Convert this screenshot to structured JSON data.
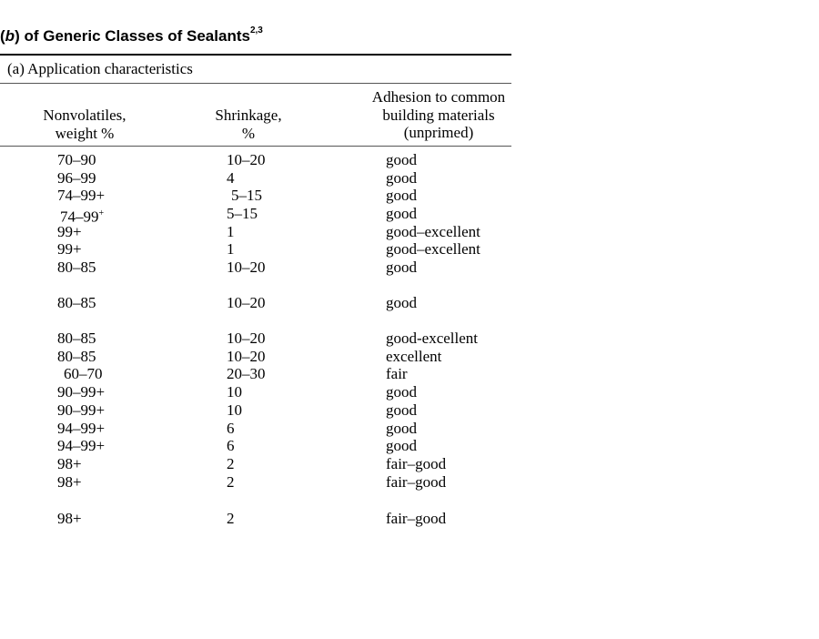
{
  "title": {
    "prefix": "(",
    "letter": "b",
    "rest": ") of Generic Classes of Sealants",
    "sup": "2,3"
  },
  "section": {
    "label": "(a) Application characteristics"
  },
  "headers": {
    "col1": [
      "Nonvolatiles,",
      "weight %"
    ],
    "col2": [
      "Shrinkage,",
      "%"
    ],
    "col3": [
      "Adhesion to common",
      "building materials",
      "(unprimed)"
    ]
  },
  "rows": [
    {
      "nonvolatiles": "70–90",
      "shrinkage": "10–20",
      "adhesion": "good"
    },
    {
      "nonvolatiles": "96–99",
      "shrinkage": "4",
      "adhesion": "good"
    },
    {
      "nonvolatiles": "74–99+",
      "shrinkage": "5–15",
      "adhesion": "good"
    },
    {
      "nonvolatiles": "74–99",
      "nonvolatiles_sup": "+",
      "shrinkage": "5–15",
      "adhesion": "good"
    },
    {
      "nonvolatiles": "99+",
      "shrinkage": "1",
      "adhesion": "good–excellent"
    },
    {
      "nonvolatiles": "99+",
      "shrinkage": "1",
      "adhesion": "good–excellent"
    },
    {
      "nonvolatiles": "80–85",
      "shrinkage": "10–20",
      "adhesion": "good"
    },
    {
      "nonvolatiles": "80–85",
      "shrinkage": "10–20",
      "adhesion": "good"
    },
    {
      "nonvolatiles": "80–85",
      "shrinkage": "10–20",
      "adhesion": "good-excellent"
    },
    {
      "nonvolatiles": "80–85",
      "shrinkage": "10–20",
      "adhesion": "excellent"
    },
    {
      "nonvolatiles": "60–70",
      "shrinkage": "20–30",
      "adhesion": "fair"
    },
    {
      "nonvolatiles": "90–99+",
      "shrinkage": "10",
      "adhesion": "good"
    },
    {
      "nonvolatiles": "90–99+",
      "shrinkage": "10",
      "adhesion": "good"
    },
    {
      "nonvolatiles": "94–99+",
      "shrinkage": "6",
      "adhesion": "good"
    },
    {
      "nonvolatiles": "94–99+",
      "shrinkage": "6",
      "adhesion": "good"
    },
    {
      "nonvolatiles": "98+",
      "shrinkage": "2",
      "adhesion": "fair–good"
    },
    {
      "nonvolatiles": "98+",
      "shrinkage": "2",
      "adhesion": "fair–good"
    },
    {
      "nonvolatiles": "98+",
      "shrinkage": "2",
      "adhesion": "fair–good"
    }
  ]
}
